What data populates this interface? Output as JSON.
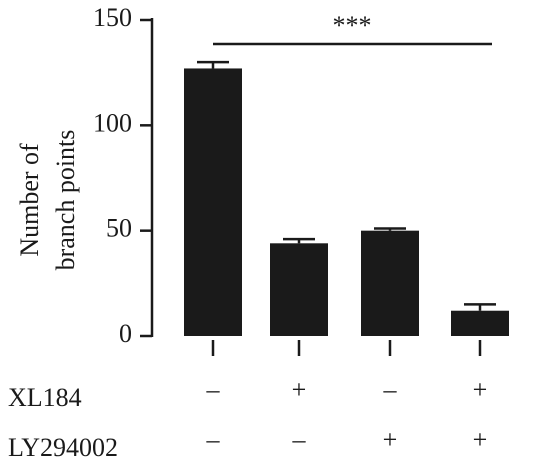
{
  "chart_data": {
    "type": "bar",
    "y_label": [
      "Number of",
      "branch points"
    ],
    "categories": [
      null,
      null,
      null,
      null
    ],
    "values": [
      127,
      44,
      50,
      12
    ],
    "errors": [
      3,
      2,
      1,
      3
    ],
    "color": "#1a1a1a",
    "ylim": [
      0,
      150
    ],
    "yticks": [
      0,
      50,
      100,
      150
    ],
    "annotation": "***",
    "treatments": [
      {
        "label": "XL184",
        "signs": [
          "–",
          "+",
          "–",
          "+"
        ]
      },
      {
        "label": "LY294002",
        "signs": [
          "–",
          "–",
          "+",
          "+"
        ]
      }
    ]
  }
}
